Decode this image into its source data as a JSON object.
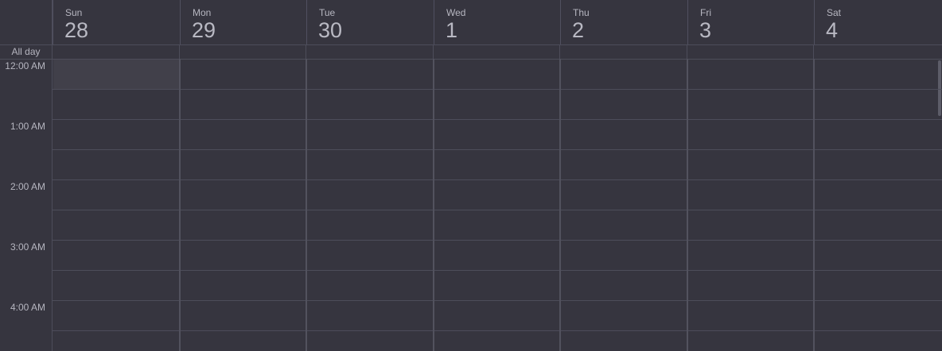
{
  "calendar": {
    "allday_label": "All day",
    "days": [
      {
        "name": "Sun",
        "number": "28"
      },
      {
        "name": "Mon",
        "number": "29"
      },
      {
        "name": "Tue",
        "number": "30"
      },
      {
        "name": "Wed",
        "number": "1"
      },
      {
        "name": "Thu",
        "number": "2"
      },
      {
        "name": "Fri",
        "number": "3"
      },
      {
        "name": "Sat",
        "number": "4"
      }
    ],
    "hours": [
      "12:00 AM",
      "1:00 AM",
      "2:00 AM",
      "3:00 AM",
      "4:00 AM"
    ],
    "colors": {
      "background": "#36353f",
      "gridline": "#4d4d5a",
      "selected_slot": "#41404a",
      "text": "#b6b6c0"
    }
  }
}
